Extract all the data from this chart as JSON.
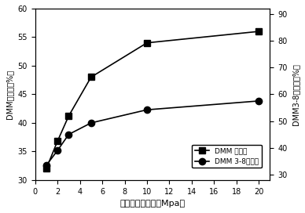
{
  "x": [
    1,
    2,
    3,
    5,
    10,
    20
  ],
  "dmm_conversion": [
    32.0,
    36.8,
    41.2,
    48.0,
    54.0,
    56.0
  ],
  "dmm38_selectivity": [
    33.5,
    39.0,
    45.0,
    49.3,
    54.2,
    57.5
  ],
  "xlabel": "催化剂改性压力（Mpa）",
  "ylabel_left": "DMM转化率（%）",
  "ylabel_right": "DMM3-8选择率（%）",
  "legend_conversion": "DMM 转化率",
  "legend_selectivity": "DMM 3-8选择性",
  "xlim": [
    0,
    21
  ],
  "xticks": [
    0,
    2,
    4,
    6,
    8,
    10,
    12,
    14,
    16,
    18,
    20
  ],
  "ylim_left": [
    30,
    60
  ],
  "yticks_left": [
    30,
    35,
    40,
    45,
    50,
    55,
    60
  ],
  "ylim_right": [
    28,
    92
  ],
  "yticks_right": [
    30,
    40,
    50,
    60,
    70,
    80,
    90
  ],
  "line_color": "black",
  "marker_square": "s",
  "marker_circle": "o",
  "markersize": 6,
  "linewidth": 1.2
}
